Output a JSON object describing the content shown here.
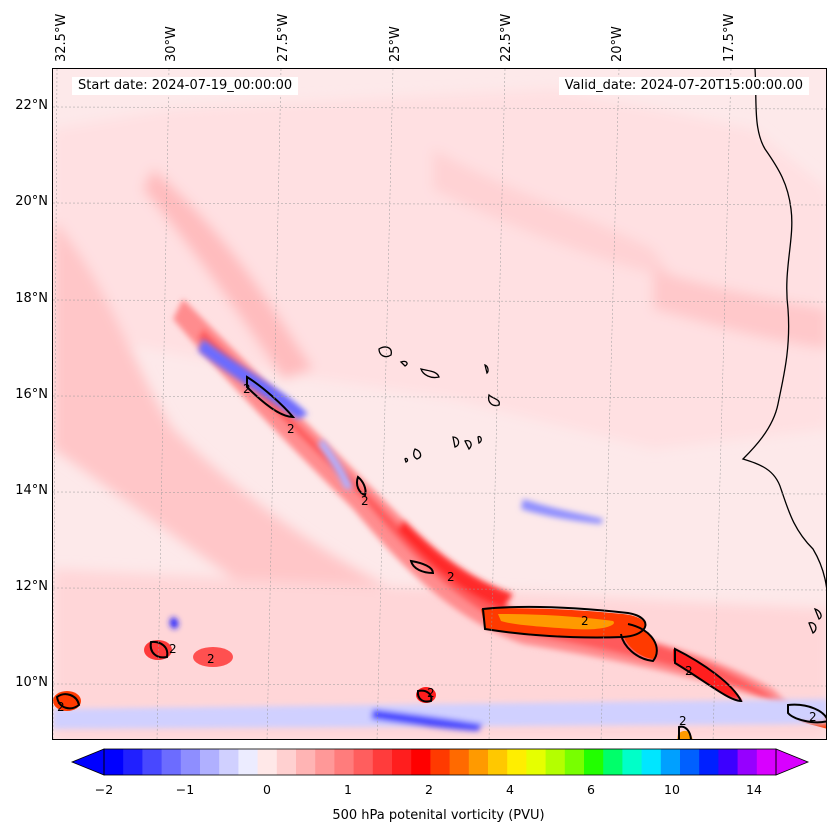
{
  "header": {
    "start_label": "Start date: 2024-07-19_00:00:00",
    "valid_label": "Valid_date: 2024-07-20T15:00:00.00"
  },
  "map": {
    "lon_labels": [
      "32.5°W",
      "30°W",
      "27.5°W",
      "25°W",
      "22.5°W",
      "20°W",
      "17.5°W"
    ],
    "lat_labels": [
      "22°N",
      "20°N",
      "18°N",
      "16°N",
      "14°N",
      "12°N",
      "10°N"
    ],
    "contour_value_label": "2"
  },
  "colorbar": {
    "ticks": [
      "−2",
      "−1",
      "0",
      "1",
      "2",
      "4",
      "6",
      "10",
      "14"
    ],
    "title": "500 hPa potenital vorticity (PVU)",
    "colors": [
      "#0000ff",
      "#2020ff",
      "#4848ff",
      "#6c6cff",
      "#8e8eff",
      "#b0b0ff",
      "#d0d0ff",
      "#ececff",
      "#ffe8e8",
      "#ffd0d0",
      "#ffb4b4",
      "#ff9898",
      "#ff7c7c",
      "#ff5e5e",
      "#ff3c3c",
      "#ff1e1e",
      "#ff0000",
      "#ff3a00",
      "#ff6a00",
      "#ff9a00",
      "#ffc800",
      "#ffee00",
      "#e6ff00",
      "#b4ff00",
      "#78ff00",
      "#22ff00",
      "#00ff6a",
      "#00ffc8",
      "#00e6ff",
      "#00a0ff",
      "#0060ff",
      "#0020ff",
      "#3c00ff",
      "#9600ff",
      "#d800ff"
    ]
  }
}
